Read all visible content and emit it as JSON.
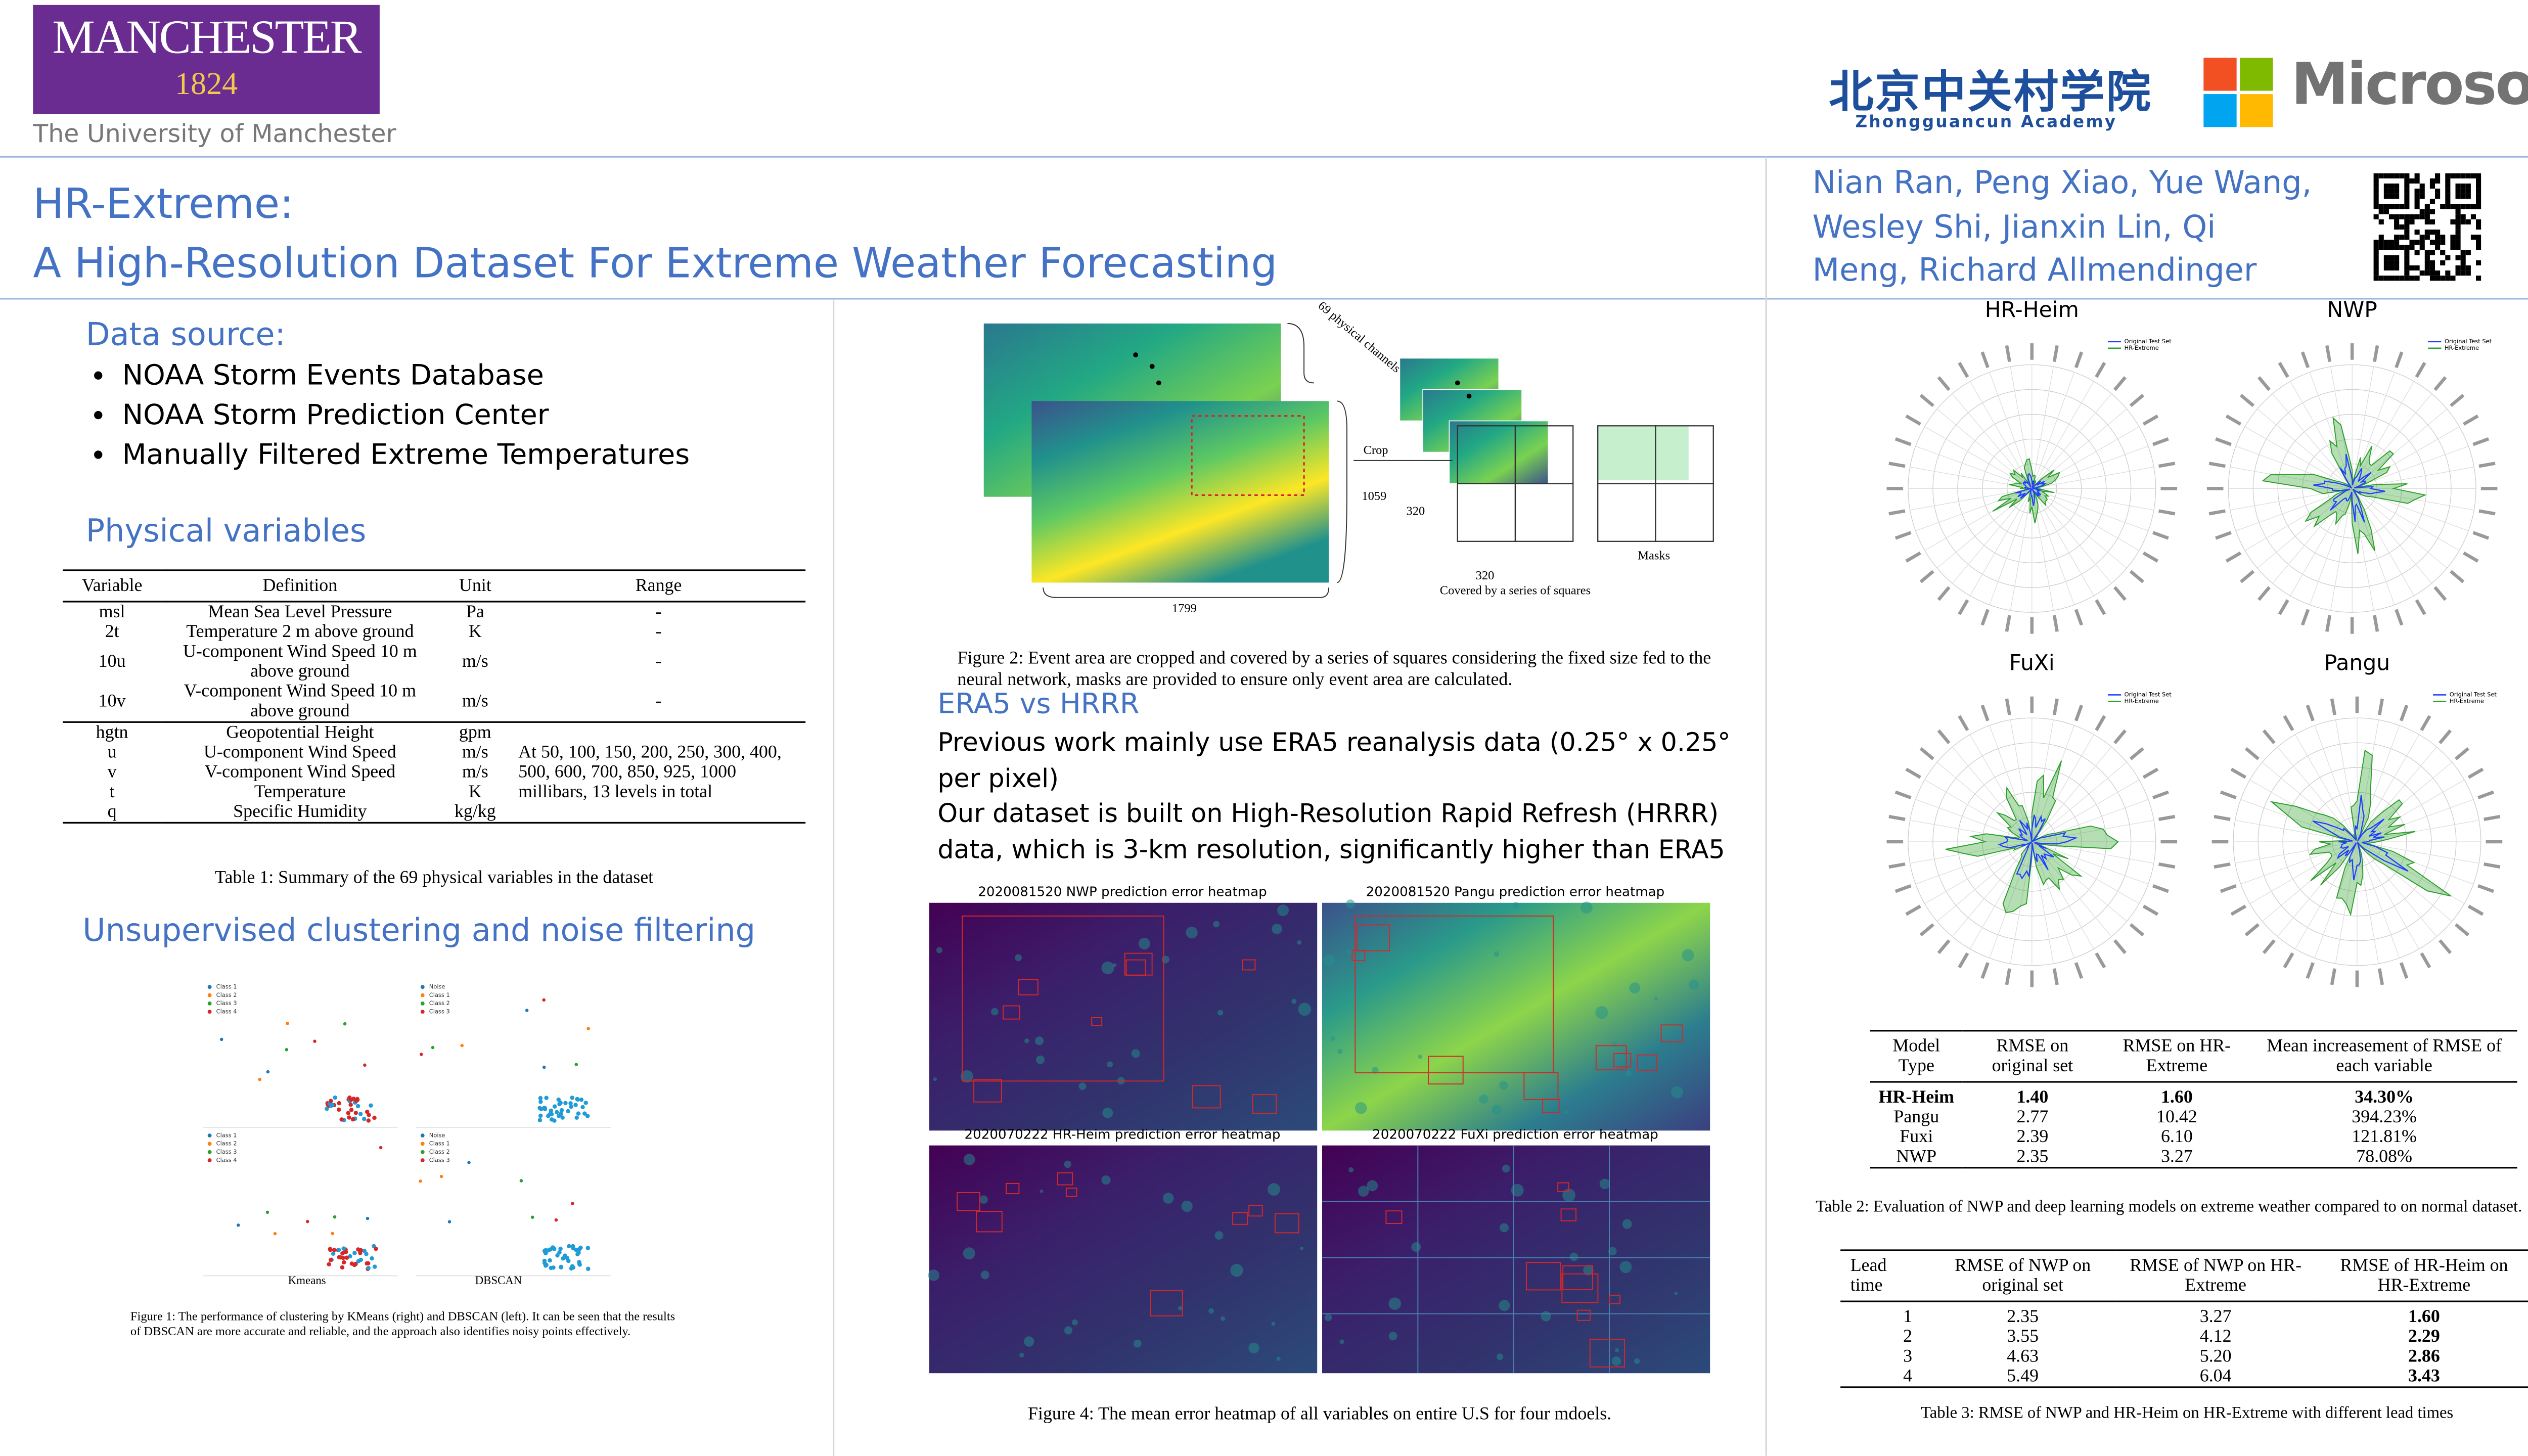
{
  "header": {
    "university": "MANCHESTER",
    "year": "1824",
    "university_full": "The University of Manchester",
    "academy_cn": "北京中关村学院",
    "academy_en": "Zhongguancun Academy",
    "company": "Microsoft"
  },
  "title": {
    "line1": "HR-Extreme:",
    "line2": "A High-Resolution Dataset For Extreme Weather Forecasting"
  },
  "authors": "Nian Ran, Peng Xiao, Yue Wang, Wesley Shi, Jianxin Lin, Qi Meng, Richard Allmendinger",
  "data_source": {
    "heading": "Data source:",
    "items": [
      "NOAA Storm Events Database",
      "NOAA Storm Prediction Center",
      "Manually Filtered Extreme Temperatures"
    ]
  },
  "physical_variables": {
    "heading": "Physical variables",
    "table": {
      "header": [
        "Variable",
        "Definition",
        "Unit",
        "Range"
      ],
      "surface_rows": [
        [
          "msl",
          "Mean Sea Level Pressure",
          "Pa",
          "-"
        ],
        [
          "2t",
          "Temperature 2 m above ground",
          "K",
          "-"
        ],
        [
          "10u",
          "U-component Wind Speed 10 m above ground",
          "m/s",
          "-"
        ],
        [
          "10v",
          "V-component Wind Speed 10 m above ground",
          "m/s",
          "-"
        ]
      ],
      "level_rows": [
        [
          "hgtn",
          "Geopotential Height",
          "gpm"
        ],
        [
          "u",
          "U-component Wind Speed",
          "m/s"
        ],
        [
          "v",
          "V-component Wind Speed",
          "m/s"
        ],
        [
          "t",
          "Temperature",
          "K"
        ],
        [
          "q",
          "Specific Humidity",
          "kg/kg"
        ]
      ],
      "level_range": "At 50, 100, 150, 200, 250, 300, 400, 500, 600, 700, 850, 925, 1000 millibars, 13 levels in total",
      "caption": "Table 1: Summary of the 69 physical variables in the dataset"
    }
  },
  "clustering": {
    "heading": "Unsupervised clustering and noise filtering",
    "kmeans_legend": [
      "Class 1",
      "Class 2",
      "Class 3",
      "Class 4"
    ],
    "dbscan_legend": [
      "Noise",
      "Class 1",
      "Class 2",
      "Class 3"
    ],
    "kmeans_label": "Kmeans",
    "dbscan_label": "DBSCAN",
    "caption": "Figure 1: The performance of clustering by KMeans (right) and DBSCAN (left). It can be seen that the results of DBSCAN are more accurate and reliable, and the approach also identifies noisy points effectively."
  },
  "figure2": {
    "channels": "69 physical channels",
    "crop": "Crop",
    "height": "1059",
    "square_h": "320",
    "square_w": "320",
    "width": "1799",
    "covered": "Covered by a series of squares",
    "masks": "Masks",
    "caption": "Figure 2: Event area are cropped and covered by a series of squares considering the fixed size fed to the neural network, masks are provided to ensure only event area are calculated."
  },
  "era5": {
    "heading": "ERA5 vs HRRR",
    "paragraphs": [
      "Previous work mainly use ERA5 reanalysis data (0.25° x 0.25° per pixel)",
      "Our dataset is built on High-Resolution Rapid Refresh (HRRR) data, which is 3-km resolution, significantly higher than ERA5"
    ]
  },
  "heatmaps": {
    "titles": [
      "2020081520 NWP prediction error heatmap",
      "2020081520 Pangu prediction error heatmap",
      "2020070222 HR-Heim prediction error heatmap",
      "2020070222 FuXi prediction error heatmap"
    ],
    "caption": "Figure 4: The mean error heatmap of all variables on entire U.S for four mdoels."
  },
  "radar": {
    "titles": [
      "HR-Heim",
      "NWP",
      "FuXi",
      "Pangu"
    ],
    "legend": [
      "Original Test Set",
      "HR-Extreme"
    ]
  },
  "table2": {
    "header": [
      "Model Type",
      "RMSE on original set",
      "RMSE on HR-Extreme",
      "Mean increasement of RMSE of each variable"
    ],
    "rows": [
      [
        "HR-Heim",
        "1.40",
        "1.60",
        "34.30%"
      ],
      [
        "Pangu",
        "2.77",
        "10.42",
        "394.23%"
      ],
      [
        "Fuxi",
        "2.39",
        "6.10",
        "121.81%"
      ],
      [
        "NWP",
        "2.35",
        "3.27",
        "78.08%"
      ]
    ],
    "bold_row": 0,
    "caption": "Table 2: Evaluation of NWP and deep learning models on extreme weather compared to on normal dataset."
  },
  "table3": {
    "header": [
      "Lead time",
      "RMSE of NWP on original set",
      "RMSE of NWP on HR-Extreme",
      "RMSE of HR-Heim on HR-Extreme"
    ],
    "rows": [
      [
        "1",
        "2.35",
        "3.27",
        "1.60"
      ],
      [
        "2",
        "3.55",
        "4.12",
        "2.29"
      ],
      [
        "3",
        "4.63",
        "5.20",
        "2.86"
      ],
      [
        "4",
        "5.49",
        "6.04",
        "3.43"
      ]
    ],
    "bold_column": 3,
    "caption": "Table 3: RMSE of NWP and HR-Heim on HR-Extreme with different lead times"
  }
}
